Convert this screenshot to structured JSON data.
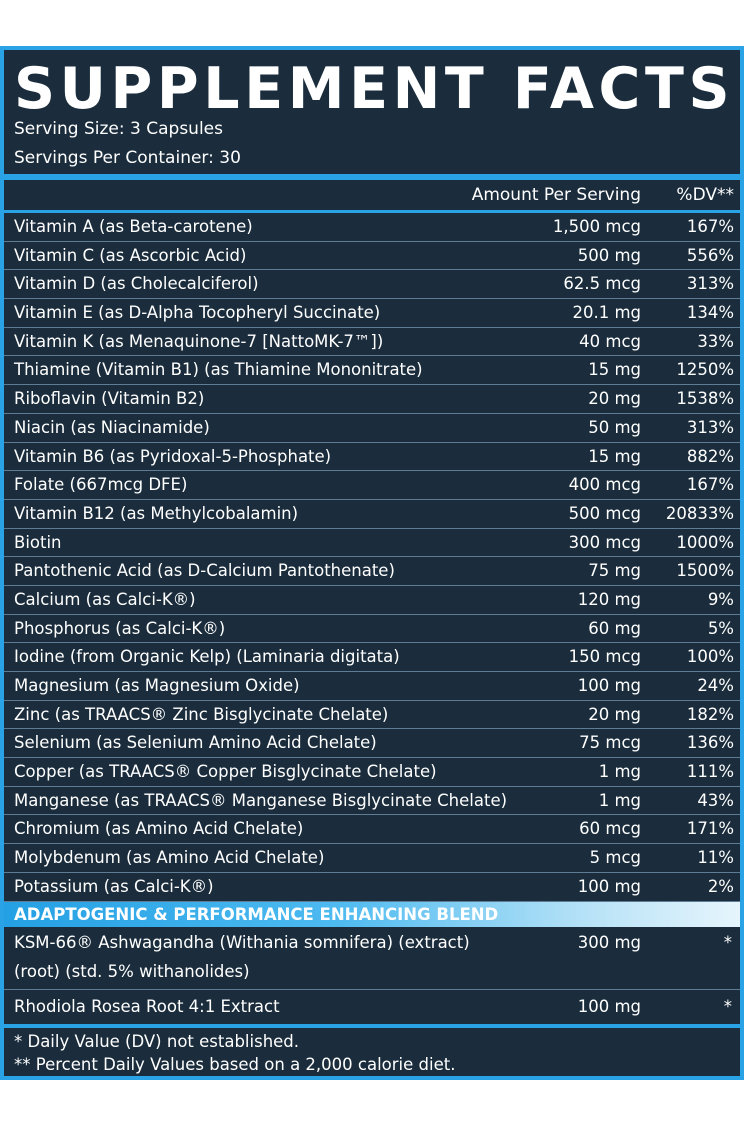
{
  "title": "SUPPLEMENT FACTS",
  "serving_size": "Serving Size: 3 Capsules",
  "servings_per_container": "Servings Per Container: 30",
  "columns": {
    "amount": "Amount Per Serving",
    "dv": "%DV**"
  },
  "nutrients": [
    {
      "name": "Vitamin A (as Beta-carotene)",
      "amount": "1,500 mcg",
      "dv": "167%"
    },
    {
      "name": "Vitamin C (as Ascorbic Acid)",
      "amount": "500 mg",
      "dv": "556%"
    },
    {
      "name": "Vitamin D (as Cholecalciferol)",
      "amount": "62.5 mcg",
      "dv": "313%"
    },
    {
      "name": "Vitamin E (as D-Alpha Tocopheryl Succinate)",
      "amount": "20.1 mg",
      "dv": "134%"
    },
    {
      "name": "Vitamin K (as Menaquinone-7 [NattoMK-7™])",
      "amount": "40 mcg",
      "dv": "33%"
    },
    {
      "name": "Thiamine (Vitamin B1) (as Thiamine Mononitrate)",
      "amount": "15 mg",
      "dv": "1250%"
    },
    {
      "name": "Riboflavin (Vitamin B2)",
      "amount": "20 mg",
      "dv": "1538%"
    },
    {
      "name": "Niacin (as Niacinamide)",
      "amount": "50 mg",
      "dv": "313%"
    },
    {
      "name": "Vitamin B6 (as Pyridoxal-5-Phosphate)",
      "amount": "15 mg",
      "dv": "882%"
    },
    {
      "name": "Folate (667mcg DFE)",
      "amount": "400 mcg",
      "dv": "167%"
    },
    {
      "name": "Vitamin B12 (as Methylcobalamin)",
      "amount": "500 mcg",
      "dv": "20833%"
    },
    {
      "name": "Biotin",
      "amount": "300 mcg",
      "dv": "1000%"
    },
    {
      "name": "Pantothenic Acid (as D-Calcium Pantothenate)",
      "amount": "75 mg",
      "dv": "1500%"
    },
    {
      "name": "Calcium (as Calci-K®)",
      "amount": "120 mg",
      "dv": "9%"
    },
    {
      "name": "Phosphorus (as Calci-K®)",
      "amount": "60 mg",
      "dv": "5%"
    },
    {
      "name": "Iodine (from Organic Kelp) (Laminaria digitata)",
      "amount": "150 mcg",
      "dv": "100%"
    },
    {
      "name": "Magnesium (as Magnesium Oxide)",
      "amount": "100 mg",
      "dv": "24%"
    },
    {
      "name": "Zinc (as TRAACS® Zinc Bisglycinate Chelate)",
      "amount": "20 mg",
      "dv": "182%"
    },
    {
      "name": "Selenium (as Selenium Amino Acid Chelate)",
      "amount": "75 mcg",
      "dv": "136%"
    },
    {
      "name": "Copper (as TRAACS® Copper Bisglycinate Chelate)",
      "amount": "1 mg",
      "dv": "111%"
    },
    {
      "name": "Manganese (as TRAACS® Manganese Bisglycinate Chelate)",
      "amount": "1 mg",
      "dv": "43%"
    },
    {
      "name": "Chromium (as Amino Acid Chelate)",
      "amount": "60 mcg",
      "dv": "171%"
    },
    {
      "name": "Molybdenum (as Amino Acid Chelate)",
      "amount": "5 mcg",
      "dv": "11%"
    },
    {
      "name": "Potassium (as Calci-K®)",
      "amount": "100 mg",
      "dv": "2%"
    }
  ],
  "blend": {
    "title": "ADAPTOGENIC & PERFORMANCE ENHANCING BLEND",
    "items": [
      {
        "line1": "KSM-66® Ashwagandha (Withania somnifera) (extract)",
        "line2": "(root) (std. 5% withanolides)",
        "amount": "300 mg",
        "dv": "*"
      },
      {
        "line1": "Rhodiola Rosea Root 4:1 Extract",
        "amount": "100 mg",
        "dv": "*"
      }
    ]
  },
  "footnotes": [
    "* Daily Value (DV) not established.",
    "** Percent Daily Values based on a 2,000 calorie diet."
  ],
  "colors": {
    "background": "#1b2d3c",
    "accent": "#29a3e6",
    "text": "#ffffff"
  }
}
